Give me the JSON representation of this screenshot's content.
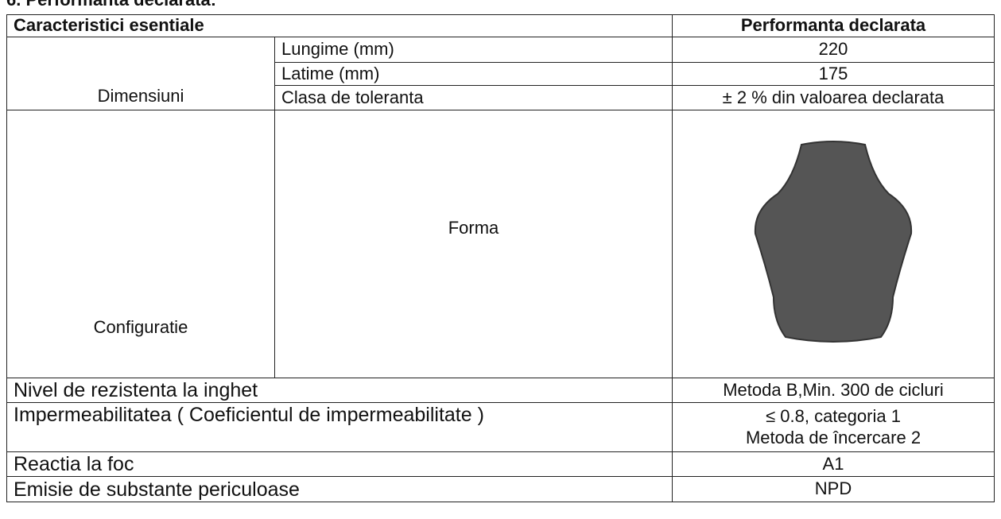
{
  "heading": "6. Performanta declarata:",
  "table": {
    "header": {
      "characteristic": "Caracteristici esentiale",
      "performance": "Performanta declarata"
    },
    "dimensions": {
      "group": "Dimensiuni",
      "rows": [
        {
          "name": "Lungime (mm)",
          "value": "220"
        },
        {
          "name": "Latime (mm)",
          "value": "175"
        },
        {
          "name": "Clasa de toleranta",
          "value": "± 2 % din valoarea declarata"
        }
      ]
    },
    "configuration": {
      "group": "Configuratie",
      "name": "Forma"
    },
    "rows": [
      {
        "name": "Nivel de rezistenta la inghet",
        "value": [
          "Metoda B,Min.  300 de cicluri"
        ]
      },
      {
        "name": "Impermeabilitatea ( Coeficientul de impermeabilitate )",
        "value": [
          "≤ 0.8, categoria 1",
          "Metoda de încercare 2"
        ]
      },
      {
        "name": "Reactia la foc",
        "value": [
          "A1"
        ]
      },
      {
        "name": "Emisie de substante  periculoase",
        "value": [
          "NPD"
        ]
      }
    ]
  }
}
